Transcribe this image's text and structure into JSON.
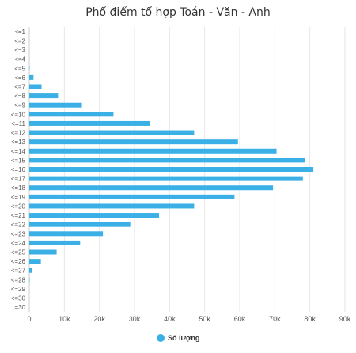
{
  "chart_data": {
    "type": "bar",
    "orientation": "horizontal",
    "title": "Phổ điểm tổ hợp Toán - Văn - Anh",
    "categories": [
      "<=1",
      "<=2",
      "<=3",
      "<=4",
      "<=5",
      "<=6",
      "<=7",
      "<=8",
      "<=9",
      "<=10",
      "<=11",
      "<=12",
      "<=13",
      "<=14",
      "<=15",
      "<=16",
      "<=17",
      "<=18",
      "<=19",
      "<=20",
      "<=21",
      "<=22",
      "<=23",
      "<=24",
      "<=25",
      "<=26",
      "<=27",
      "<=28",
      "<=29",
      "<=30",
      "=30"
    ],
    "series": [
      {
        "name": "Số lượng",
        "color": "#3ab0e6",
        "values": [
          0,
          0,
          0,
          0,
          100,
          1200,
          3500,
          8200,
          15000,
          24000,
          34500,
          47000,
          59500,
          70500,
          78500,
          81000,
          78000,
          69500,
          58500,
          47000,
          37000,
          28800,
          21000,
          14500,
          7800,
          3300,
          800,
          100,
          0,
          0,
          0
        ]
      }
    ],
    "xlim": [
      0,
      90000
    ],
    "xticks": [
      0,
      10000,
      20000,
      30000,
      40000,
      50000,
      60000,
      70000,
      80000,
      90000
    ],
    "xtick_labels": [
      "0",
      "10k",
      "20k",
      "30k",
      "40k",
      "50k",
      "60k",
      "70k",
      "80k",
      "90k"
    ],
    "grid": true,
    "legend_position": "bottom"
  }
}
